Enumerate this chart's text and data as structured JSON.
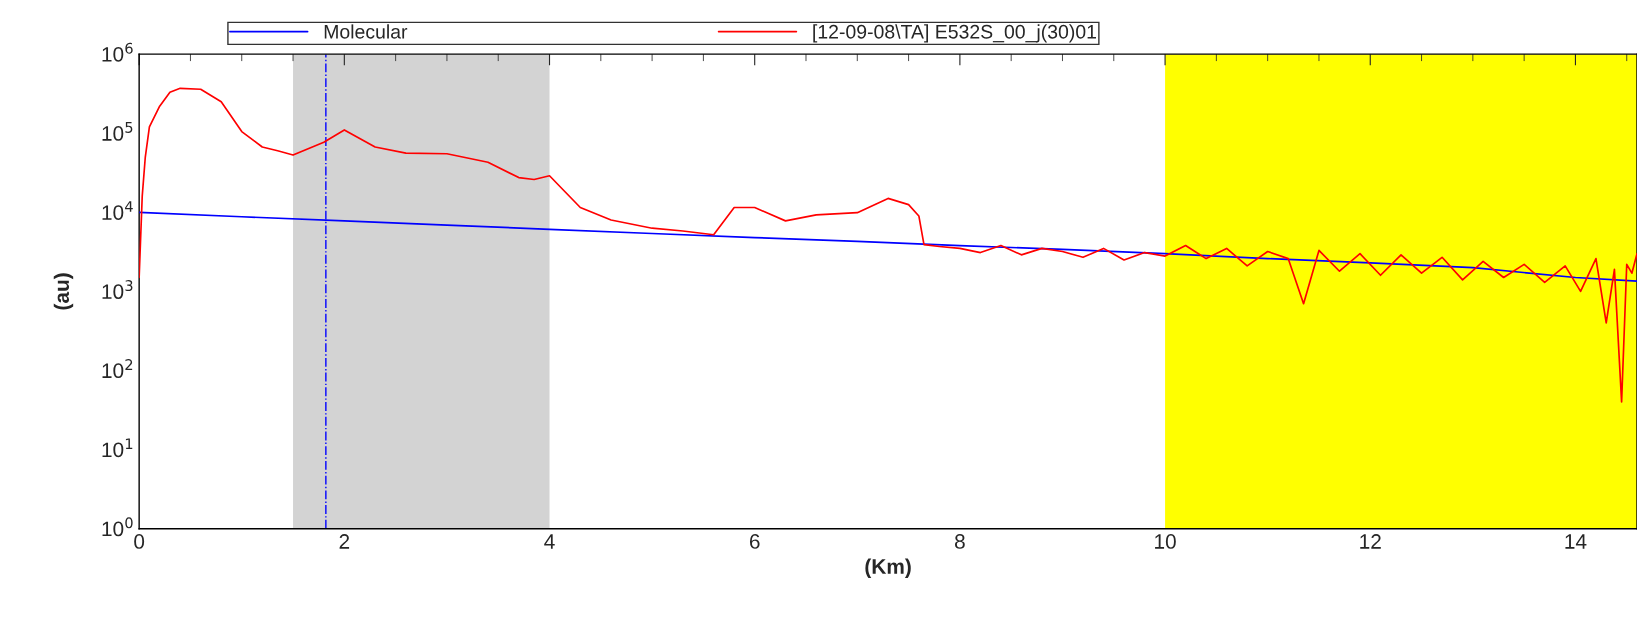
{
  "chart_data": {
    "type": "line",
    "xlabel": "(Km)",
    "ylabel": "(au)",
    "xlim": [
      0,
      14.6
    ],
    "xticks": [
      0,
      2,
      4,
      6,
      8,
      10,
      12,
      14
    ],
    "ylim": [
      1,
      1000000
    ],
    "log": "y",
    "yticks": [
      {
        "value": 1,
        "label": "10$^{0}$"
      },
      {
        "value": 10,
        "label": "10$^{1}$"
      },
      {
        "value": 100,
        "label": "10$^{2}$"
      },
      {
        "value": 1000,
        "label": "10$^{3}$"
      },
      {
        "value": 10000,
        "label": "10$^{4}$"
      },
      {
        "value": 100000,
        "label": "10$^{5}$"
      },
      {
        "value": 1000000,
        "label": "10$^{6}$"
      }
    ],
    "grid": false,
    "legend": "top",
    "line_style": "solid",
    "marker": "none",
    "bands": [
      {
        "axis": "x",
        "from": 1.5,
        "to": 4.0,
        "color": "#d3d3d3"
      },
      {
        "axis": "x",
        "from": 10,
        "to": 14.6,
        "color": "#ffff00"
      }
    ],
    "ref_lines": [
      {
        "axis": "x",
        "value": 1.82,
        "color": "#0000ff",
        "line_style": "dashdot"
      }
    ],
    "series": [
      {
        "name": "Molecular",
        "color": "#0000ff",
        "x": [
          0,
          1,
          2,
          3,
          4,
          5,
          6,
          7,
          8,
          9,
          10,
          11,
          12,
          13,
          14,
          14.6
        ],
        "values": [
          10000,
          8800,
          7800,
          6900,
          6100,
          5400,
          4800,
          4300,
          3800,
          3400,
          3000,
          2600,
          2300,
          2000,
          1500,
          1350
        ]
      },
      {
        "name": "[12-09-08\\TA] E532S_00_j(30)01",
        "color": "#ff0000",
        "x": [
          0,
          0.03,
          0.06,
          0.1,
          0.2,
          0.3,
          0.4,
          0.6,
          0.8,
          1.0,
          1.2,
          1.35,
          1.5,
          1.8,
          2.0,
          2.3,
          2.6,
          3.0,
          3.4,
          3.7,
          3.85,
          4.0,
          4.3,
          4.6,
          5.0,
          5.3,
          5.6,
          5.8,
          6.0,
          6.3,
          6.6,
          7.0,
          7.3,
          7.5,
          7.6,
          7.65,
          7.8,
          8.0,
          8.2,
          8.4,
          8.6,
          8.8,
          9.0,
          9.2,
          9.4,
          9.6,
          9.8,
          10.0,
          10.2,
          10.4,
          10.6,
          10.8,
          11.0,
          11.2,
          11.35,
          11.5,
          11.7,
          11.9,
          12.1,
          12.3,
          12.5,
          12.7,
          12.9,
          13.1,
          13.3,
          13.5,
          13.7,
          13.9,
          14.05,
          14.2,
          14.3,
          14.38,
          14.45,
          14.5,
          14.55,
          14.6
        ],
        "values": [
          1500,
          16000,
          50000,
          120000,
          220000,
          330000,
          370000,
          360000,
          250000,
          105000,
          67000,
          60000,
          53000,
          77000,
          110000,
          67000,
          56000,
          55000,
          43000,
          27500,
          26000,
          29000,
          11500,
          8000,
          6300,
          5800,
          5200,
          11500,
          11500,
          7800,
          9300,
          9900,
          15000,
          12500,
          9000,
          3900,
          3700,
          3500,
          3100,
          3800,
          2900,
          3500,
          3200,
          2700,
          3500,
          2500,
          3100,
          2800,
          3800,
          2600,
          3500,
          2100,
          3200,
          2600,
          700,
          3300,
          1800,
          3000,
          1600,
          2900,
          1700,
          2700,
          1400,
          2400,
          1500,
          2200,
          1300,
          2100,
          1000,
          2600,
          400,
          1900,
          40,
          2200,
          1700,
          3000
        ]
      }
    ]
  }
}
